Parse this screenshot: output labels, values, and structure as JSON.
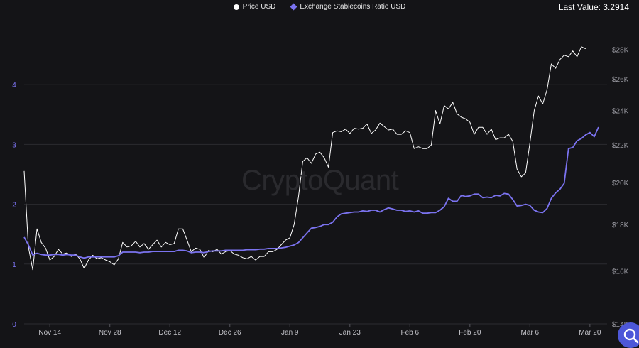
{
  "legend": {
    "price_label": "Price USD",
    "ratio_label": "Exchange Stablecoins Ratio USD"
  },
  "last_value": "Last Value: 3.2914",
  "watermark": "CryptoQuant",
  "colors": {
    "background": "#141417",
    "price": "#ffffff",
    "ratio": "#7b73f0",
    "grid": "#2b2b30"
  },
  "chart_data": {
    "type": "line",
    "title": "",
    "x_tick_labels": [
      "Nov 14",
      "Nov 28",
      "Dec 12",
      "Dec 26",
      "Jan 9",
      "Jan 23",
      "Feb 6",
      "Feb 20",
      "Mar 6",
      "Mar 20"
    ],
    "x_range": [
      0,
      136
    ],
    "x_tick_positions": [
      6,
      20,
      34,
      48,
      62,
      76,
      90,
      104,
      118,
      132
    ],
    "left_axis": {
      "ticks": [
        0,
        1,
        2,
        3,
        4
      ],
      "range": [
        0,
        5
      ],
      "color": "#7b73f0"
    },
    "right_axis": {
      "ticks": [
        14000,
        16000,
        18000,
        20000,
        22000,
        24000,
        26000,
        28000
      ],
      "tick_labels": [
        "$14K",
        "$16K",
        "$18K",
        "$20K",
        "$22K",
        "$24K",
        "$26K",
        "$28K"
      ],
      "scale": "log",
      "range": [
        14000,
        29800
      ]
    },
    "grid": true,
    "series": [
      {
        "name": "Price USD",
        "axis": "right",
        "color": "#ffffff",
        "values": [
          20600,
          17000,
          16050,
          17800,
          17200,
          16950,
          16450,
          16600,
          16900,
          16700,
          16750,
          16600,
          16700,
          16500,
          16100,
          16450,
          16650,
          16500,
          16550,
          16450,
          16380,
          16250,
          16500,
          17200,
          17000,
          17050,
          17250,
          17000,
          17150,
          16900,
          17100,
          17300,
          17000,
          17200,
          17100,
          17150,
          17800,
          17800,
          17300,
          16800,
          16950,
          16900,
          16550,
          16850,
          16800,
          16900,
          16700,
          16800,
          16850,
          16700,
          16650,
          16550,
          16500,
          16600,
          16450,
          16600,
          16600,
          16800,
          16800,
          16900,
          17100,
          17300,
          17400,
          18000,
          19300,
          21100,
          21300,
          21000,
          21500,
          21600,
          21300,
          20800,
          22700,
          22800,
          22750,
          22900,
          22650,
          22950,
          22900,
          22950,
          23200,
          22650,
          22850,
          23250,
          23050,
          22850,
          22900,
          22600,
          22600,
          22800,
          22700,
          21800,
          21900,
          21800,
          21800,
          22000,
          24000,
          23200,
          24300,
          24100,
          24500,
          23800,
          23600,
          23500,
          23300,
          22600,
          23000,
          23000,
          22600,
          22900,
          22300,
          22400,
          22400,
          22600,
          22200,
          20700,
          20300,
          20500,
          22100,
          24000,
          24900,
          24400,
          25300,
          27000,
          26700,
          27300,
          27600,
          27500,
          27900,
          27500,
          28200,
          28050
        ]
      },
      {
        "name": "Exchange Stablecoins Ratio USD",
        "axis": "left",
        "color": "#7b73f0",
        "values": [
          1.45,
          1.32,
          1.15,
          1.18,
          1.16,
          1.15,
          1.15,
          1.16,
          1.16,
          1.15,
          1.16,
          1.15,
          1.15,
          1.12,
          1.1,
          1.12,
          1.12,
          1.12,
          1.12,
          1.12,
          1.12,
          1.12,
          1.14,
          1.2,
          1.2,
          1.2,
          1.2,
          1.19,
          1.2,
          1.2,
          1.21,
          1.21,
          1.21,
          1.21,
          1.21,
          1.21,
          1.23,
          1.23,
          1.22,
          1.19,
          1.2,
          1.2,
          1.19,
          1.21,
          1.22,
          1.22,
          1.22,
          1.23,
          1.23,
          1.23,
          1.23,
          1.23,
          1.24,
          1.24,
          1.24,
          1.25,
          1.25,
          1.26,
          1.26,
          1.26,
          1.27,
          1.28,
          1.3,
          1.32,
          1.36,
          1.44,
          1.52,
          1.6,
          1.61,
          1.63,
          1.66,
          1.66,
          1.7,
          1.79,
          1.84,
          1.85,
          1.86,
          1.87,
          1.87,
          1.89,
          1.88,
          1.9,
          1.9,
          1.87,
          1.91,
          1.94,
          1.92,
          1.9,
          1.9,
          1.88,
          1.89,
          1.87,
          1.89,
          1.85,
          1.85,
          1.86,
          1.86,
          1.9,
          1.96,
          2.1,
          2.05,
          2.05,
          2.15,
          2.13,
          2.14,
          2.17,
          2.17,
          2.11,
          2.12,
          2.11,
          2.15,
          2.14,
          2.18,
          2.17,
          2.08,
          1.97,
          1.98,
          2.0,
          1.98,
          1.9,
          1.87,
          1.86,
          1.93,
          2.1,
          2.19,
          2.25,
          2.35,
          2.93,
          2.95,
          3.06,
          3.1,
          3.16,
          3.2,
          3.13,
          3.29
        ]
      }
    ]
  }
}
